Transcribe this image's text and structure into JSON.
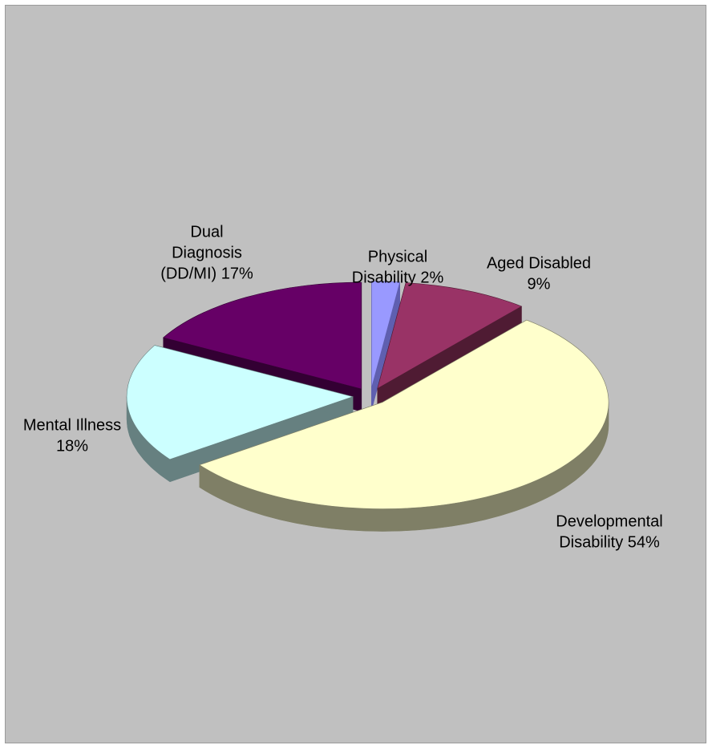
{
  "chart_data": {
    "type": "pie",
    "three_d": true,
    "exploded": true,
    "background_color": "#c0c0c0",
    "slices": [
      {
        "label_lines": [
          "Physical",
          "Disability 2%"
        ],
        "category": "Physical Disability",
        "value": 2,
        "color": "#9999ff",
        "side_color": "#5f5fb0"
      },
      {
        "label_lines": [
          "Aged Disabled",
          "9%"
        ],
        "category": "Aged Disabled",
        "value": 9,
        "color": "#993366",
        "side_color": "#4f1b33"
      },
      {
        "label_lines": [
          "Developmental",
          "Disability 54%"
        ],
        "category": "Developmental Disability",
        "value": 54,
        "color": "#ffffcc",
        "side_color": "#7f7f66"
      },
      {
        "label_lines": [
          "Mental Illness",
          "18%"
        ],
        "category": "Mental Illness",
        "value": 18,
        "color": "#ccffff",
        "side_color": "#668080"
      },
      {
        "label_lines": [
          "Dual",
          "Diagnosis",
          "(DD/MI) 17%"
        ],
        "category": "Dual Diagnosis (DD/MI)",
        "value": 17,
        "color": "#660066",
        "side_color": "#330033"
      }
    ]
  }
}
